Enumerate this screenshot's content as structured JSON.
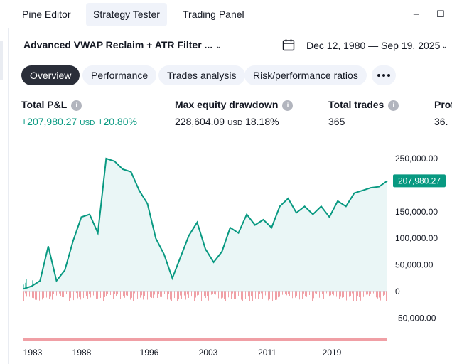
{
  "top_tabs": [
    {
      "label": "Pine Editor",
      "active": false
    },
    {
      "label": "Strategy Tester",
      "active": true
    },
    {
      "label": "Trading Panel",
      "active": false
    }
  ],
  "window_controls": {
    "minimize": "_",
    "maximize": "☐"
  },
  "strategy": {
    "name": "Advanced VWAP Reclaim + ATR Filter ..."
  },
  "date_range": {
    "label": "Dec 12, 1980 — Sep 19, 2025"
  },
  "sub_tabs": [
    {
      "label": "Overview",
      "active": true
    },
    {
      "label": "Performance",
      "active": false
    },
    {
      "label": "Trades analysis",
      "active": false
    },
    {
      "label": "Risk/performance ratios",
      "active": false
    }
  ],
  "metrics": {
    "total_pl": {
      "label": "Total P&L",
      "value": "+207,980.27",
      "unit": "USD",
      "percent": "+20.80%"
    },
    "max_drawdown": {
      "label": "Max equity drawdown",
      "value": "228,604.09",
      "unit": "USD",
      "percent": "18.18%"
    },
    "total_trades": {
      "label": "Total trades",
      "value": "365"
    },
    "profitable": {
      "label": "Prof",
      "value": "36."
    }
  },
  "colors": {
    "equity": "#089981",
    "fill": "#eaf6f6",
    "gain_bar": "#7fcfc0",
    "loss_bar": "#f09fa5",
    "badge": "#089981"
  },
  "chart_data": {
    "type": "area",
    "x_labels": [
      "1983",
      "1988",
      "1996",
      "2003",
      "2011",
      "2019"
    ],
    "y_labels": [
      "250,000.00",
      "150,000.00",
      "100,000.00",
      "50,000.00",
      "0",
      "-50,000.00"
    ],
    "ylim": [
      -60000,
      260000
    ],
    "last_value_label": "207,980.27",
    "equity_series": {
      "x": [
        1981,
        1982,
        1983,
        1984,
        1985,
        1986,
        1987,
        1988,
        1989,
        1990,
        1991,
        1992,
        1993,
        1994,
        1995,
        1996,
        1997,
        1998,
        1999,
        2000,
        2001,
        2002,
        2003,
        2004,
        2005,
        2006,
        2007,
        2008,
        2009,
        2010,
        2011,
        2012,
        2013,
        2014,
        2015,
        2016,
        2017,
        2018,
        2019,
        2020,
        2021,
        2022,
        2023,
        2024,
        2025
      ],
      "values": [
        5000,
        10000,
        20000,
        85000,
        20000,
        40000,
        95000,
        140000,
        145000,
        110000,
        250000,
        245000,
        230000,
        225000,
        190000,
        165000,
        100000,
        70000,
        25000,
        65000,
        105000,
        130000,
        80000,
        55000,
        75000,
        120000,
        110000,
        145000,
        125000,
        135000,
        120000,
        160000,
        175000,
        148000,
        160000,
        145000,
        160000,
        140000,
        170000,
        160000,
        185000,
        190000,
        195000,
        197000,
        207980
      ]
    }
  }
}
